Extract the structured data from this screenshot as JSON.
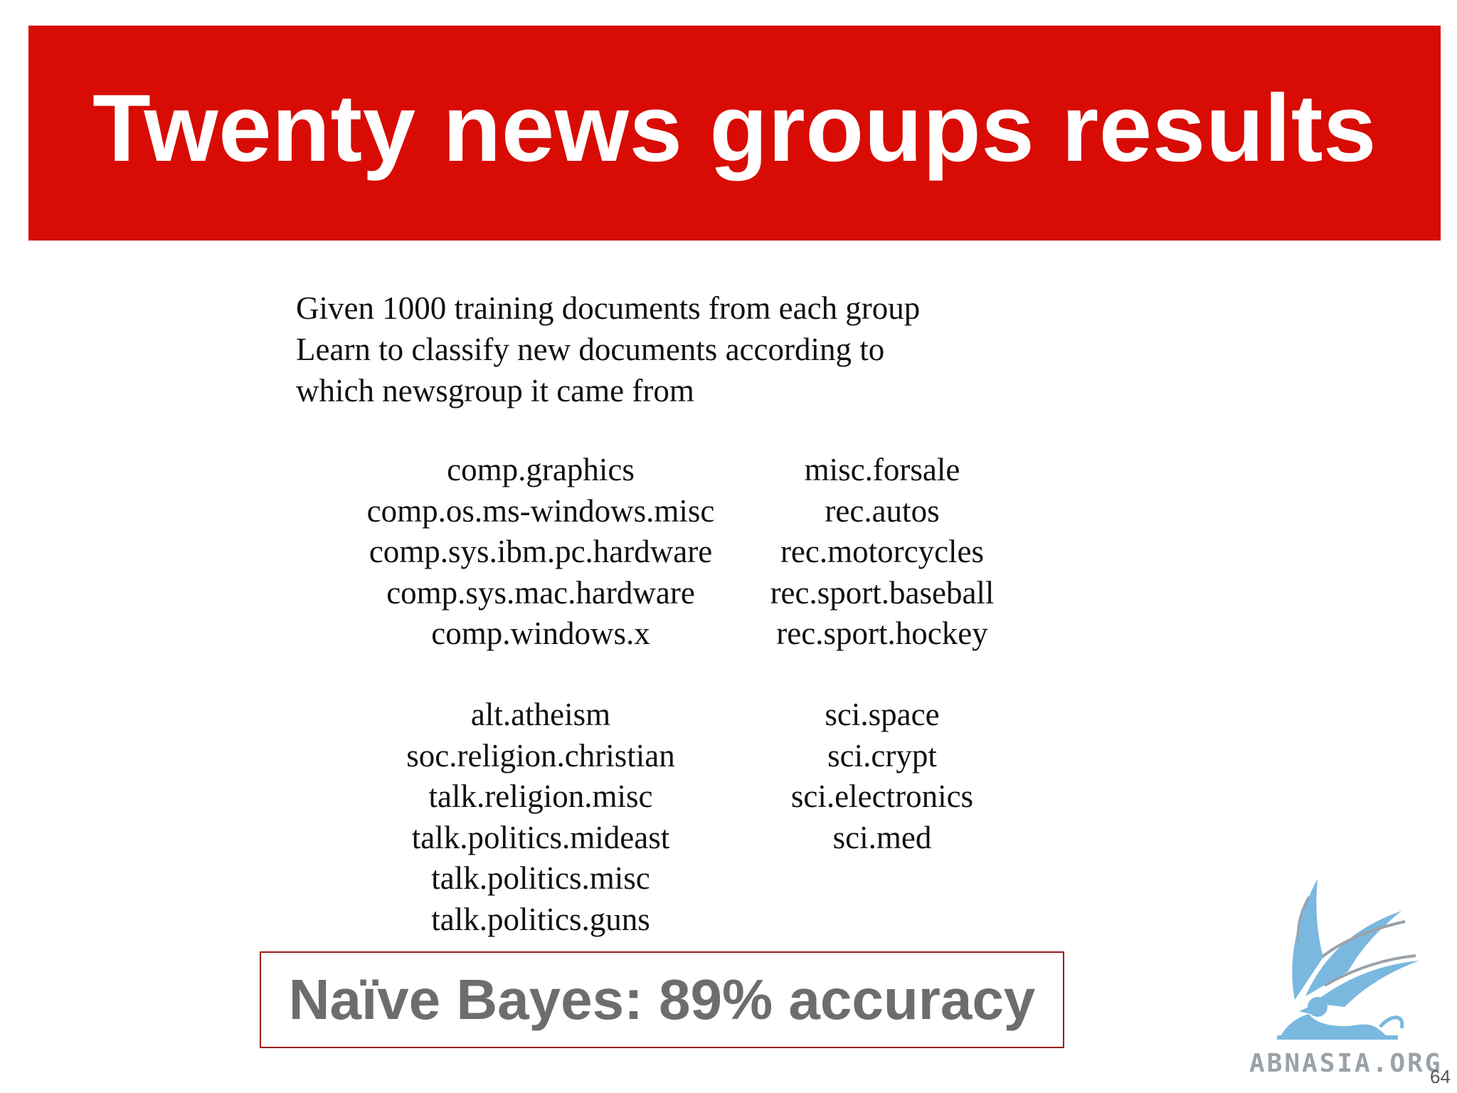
{
  "slide": {
    "title": "Twenty news groups results",
    "intro_lines": [
      "Given 1000 training documents from each group",
      "Learn to classify new documents according to",
      "which newsgroup it came from"
    ],
    "groups": {
      "block1_left": [
        "comp.graphics",
        "comp.os.ms-windows.misc",
        "comp.sys.ibm.pc.hardware",
        "comp.sys.mac.hardware",
        "comp.windows.x"
      ],
      "block1_right": [
        "misc.forsale",
        "rec.autos",
        "rec.motorcycles",
        "rec.sport.baseball",
        "rec.sport.hockey"
      ],
      "block2_left": [
        "alt.atheism",
        "soc.religion.christian",
        "talk.religion.misc",
        "talk.politics.mideast",
        "talk.politics.misc",
        "talk.politics.guns"
      ],
      "block2_right": [
        "sci.space",
        "sci.crypt",
        "sci.electronics",
        "sci.med"
      ]
    },
    "result": "Naïve Bayes: 89% accuracy",
    "logo_text": "ABNASIA.ORG",
    "page_number": "64"
  },
  "colors": {
    "title_bar": "#d80c04",
    "result_text": "#6d6d6d",
    "result_border": "#9a1d1d",
    "logo_blue": "#7ab8e0"
  }
}
